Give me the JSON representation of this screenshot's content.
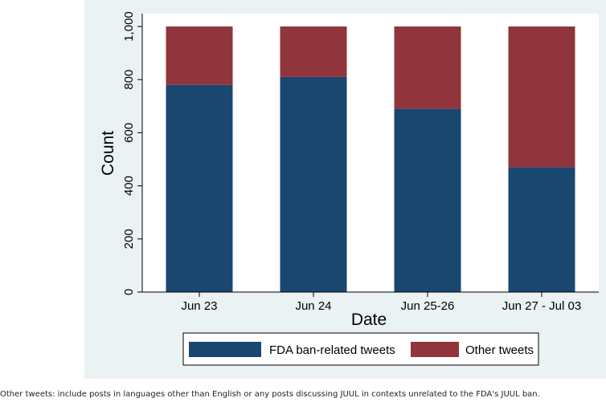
{
  "chart_data": {
    "type": "bar",
    "stacked": true,
    "categories": [
      "Jun 23",
      "Jun 24",
      "Jun 25-26",
      "Jun 27 - Jul 03"
    ],
    "series": [
      {
        "name": "FDA ban-related tweets",
        "values": [
          780,
          810,
          690,
          470
        ],
        "color": "#1a476f"
      },
      {
        "name": "Other tweets",
        "values": [
          220,
          190,
          310,
          530
        ],
        "color": "#90353b"
      }
    ],
    "xlabel": "Date",
    "ylabel": "Count",
    "ylim": [
      0,
      1000
    ],
    "yticks": [
      0,
      200,
      400,
      600,
      800,
      1000
    ],
    "ytick_labels": [
      "0",
      "200",
      "400",
      "600",
      "800",
      "1,000"
    ],
    "legend_position": "bottom"
  },
  "caption": "Other tweets: include posts in languages other than English or any posts discussing JUUL in contexts unrelated to the FDA's JUUL ban."
}
